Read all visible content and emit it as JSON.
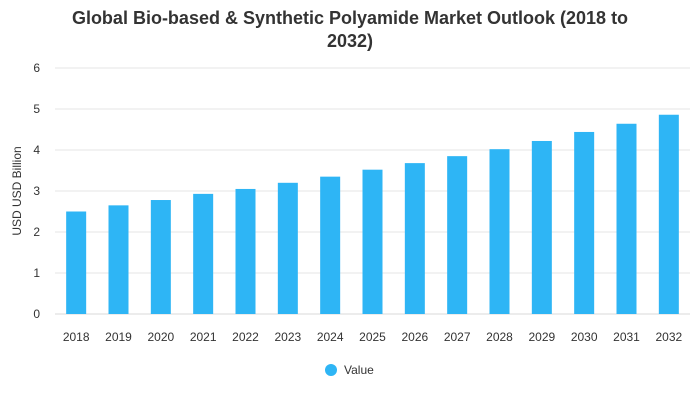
{
  "chart_data": {
    "type": "bar",
    "title": "Global Bio-based & Synthetic Polyamide Market Outlook (2018 to 2032)",
    "title_lines": [
      "Global Bio-based & Synthetic Polyamide Market Outlook (2018 to",
      "2032)"
    ],
    "xlabel": "",
    "ylabel": "USD USD Billion",
    "ylim": [
      0,
      6
    ],
    "yticks": [
      0,
      1,
      2,
      3,
      4,
      5,
      6
    ],
    "grid": true,
    "legend_position": "bottom",
    "categories": [
      "2018",
      "2019",
      "2020",
      "2021",
      "2022",
      "2023",
      "2024",
      "2025",
      "2026",
      "2027",
      "2028",
      "2029",
      "2030",
      "2031",
      "2032"
    ],
    "series": [
      {
        "name": "Value",
        "color": "#2eb5f5",
        "values": [
          2.5,
          2.65,
          2.78,
          2.93,
          3.05,
          3.2,
          3.35,
          3.52,
          3.68,
          3.85,
          4.02,
          4.22,
          4.44,
          4.64,
          4.86
        ]
      }
    ]
  }
}
